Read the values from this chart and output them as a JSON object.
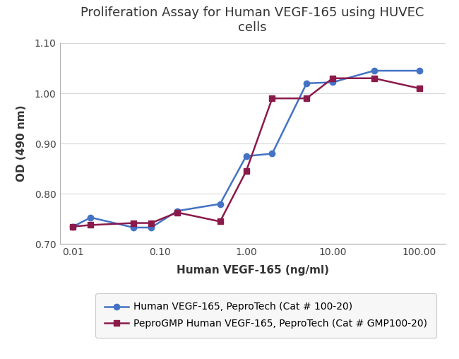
{
  "title": "Proliferation Assay for Human VEGF-165 using HUVEC\ncells",
  "xlabel": "Human VEGF-165 (ng/ml)",
  "ylabel": "OD (490 nm)",
  "ylim": [
    0.7,
    1.1
  ],
  "yticks": [
    0.7,
    0.8,
    0.9,
    1.0,
    1.1
  ],
  "xtick_values": [
    0.01,
    0.1,
    1.0,
    10.0,
    100.0
  ],
  "xtick_labels": [
    "0.01",
    "0.10",
    "1.00",
    "10.00",
    "100.00"
  ],
  "series1": {
    "label": "Human VEGF-165, PeproTech (Cat # 100-20)",
    "color": "#4472C4",
    "marker": "o",
    "x": [
      0.01,
      0.016,
      0.05,
      0.08,
      0.16,
      0.5,
      1.0,
      2.0,
      5.0,
      10.0,
      30.0,
      100.0
    ],
    "y": [
      0.735,
      0.753,
      0.733,
      0.733,
      0.766,
      0.78,
      0.875,
      0.88,
      1.02,
      1.022,
      1.045,
      1.045
    ]
  },
  "series2": {
    "label": "PeproGMP Human VEGF-165, PeproTech (Cat # GMP100-20)",
    "color": "#8B1A4A",
    "marker": "s",
    "x": [
      0.01,
      0.016,
      0.05,
      0.08,
      0.16,
      0.5,
      1.0,
      2.0,
      5.0,
      10.0,
      30.0,
      100.0
    ],
    "y": [
      0.735,
      0.738,
      0.742,
      0.742,
      0.763,
      0.745,
      0.845,
      0.99,
      0.99,
      1.03,
      1.03,
      1.01
    ]
  },
  "grid_color": "#d8d8d8",
  "spine_color": "#b0b0b0",
  "title_fontsize": 13,
  "axis_label_fontsize": 11,
  "tick_fontsize": 10,
  "legend_fontsize": 10,
  "line_width": 1.8,
  "marker_size": 6
}
